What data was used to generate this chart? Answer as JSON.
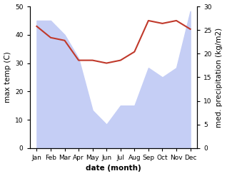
{
  "months": [
    "Jan",
    "Feb",
    "Mar",
    "Apr",
    "May",
    "Jun",
    "Jul",
    "Aug",
    "Sep",
    "Oct",
    "Nov",
    "Dec"
  ],
  "temperature": [
    43,
    39,
    38,
    31,
    31,
    30,
    31,
    34,
    45,
    44,
    45,
    42
  ],
  "precipitation": [
    27,
    27,
    24,
    19,
    8,
    5,
    9,
    9,
    17,
    15,
    17,
    29
  ],
  "temp_color": "#c0392b",
  "precip_fill_color": "#c5cef5",
  "temp_ylim": [
    0,
    50
  ],
  "precip_ylim": [
    0,
    30
  ],
  "temp_yticks": [
    0,
    10,
    20,
    30,
    40,
    50
  ],
  "precip_yticks": [
    0,
    5,
    10,
    15,
    20,
    25,
    30
  ],
  "xlabel": "date (month)",
  "ylabel_left": "max temp (C)",
  "ylabel_right": "med. precipitation (kg/m2)",
  "label_fontsize": 7.5,
  "tick_fontsize": 6.5,
  "fig_width": 3.18,
  "fig_height": 2.47,
  "dpi": 100
}
